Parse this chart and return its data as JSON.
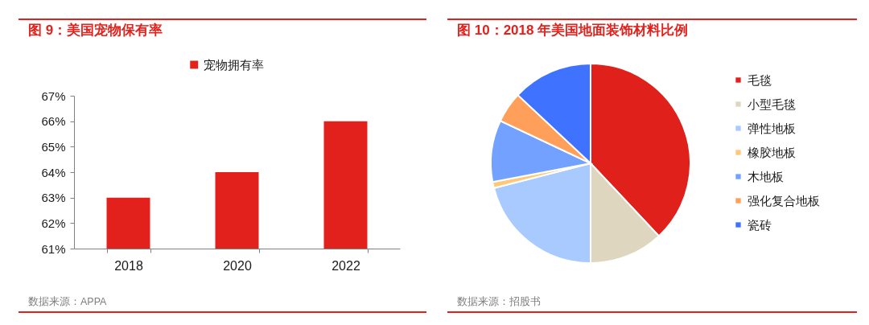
{
  "chart_data": [
    {
      "type": "bar",
      "title": "图 9：美国宠物保有率",
      "categories": [
        "2018",
        "2020",
        "2022"
      ],
      "series": [
        {
          "name": "宠物拥有率",
          "color": "#e2211c",
          "values": [
            63,
            64,
            66
          ]
        }
      ],
      "ylim": [
        61,
        67
      ],
      "yticks": [
        {
          "value": 61,
          "label": "61%"
        },
        {
          "value": 62,
          "label": "62%"
        },
        {
          "value": 63,
          "label": "63%"
        },
        {
          "value": 64,
          "label": "64%"
        },
        {
          "value": 65,
          "label": "65%"
        },
        {
          "value": 66,
          "label": "66%"
        },
        {
          "value": 67,
          "label": "67%"
        }
      ],
      "legend": "top",
      "annotations": [
        "数据来源：APPA"
      ]
    },
    {
      "type": "pie",
      "title": "图 10：2018 年美国地面装饰材料比例",
      "categories": [
        "毛毯",
        "小型毛毯",
        "弹性地板",
        "橡胶地板",
        "木地板",
        "强化复合地板",
        "瓷砖"
      ],
      "values": [
        38,
        12,
        21,
        1,
        10,
        5,
        13
      ],
      "colors": [
        "#e0211b",
        "#ded6bf",
        "#a8caff",
        "#ffc879",
        "#72a1ff",
        "#ff9f5a",
        "#3f73ff"
      ],
      "legend": "right",
      "annotations": [
        "数据来源：招股书"
      ]
    }
  ]
}
